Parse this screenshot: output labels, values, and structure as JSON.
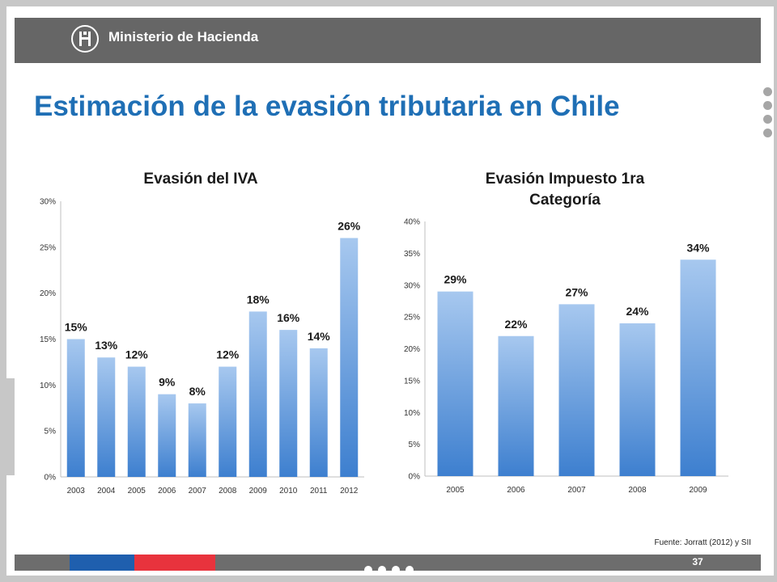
{
  "header": {
    "brand": "Ministerio de Hacienda"
  },
  "title": "Estimación de la evasión tributaria en Chile",
  "footer": {
    "source": "Fuente: Jorratt (2012) y SII",
    "page_number": "37"
  },
  "colors": {
    "title": "#1f6fb5",
    "bar_top": "#a7c8ef",
    "bar_bottom": "#3d7fcf",
    "header_bar": "#666666",
    "footer_blue": "#1f5fae",
    "footer_red": "#e8333d"
  },
  "chart_data": [
    {
      "type": "bar",
      "title": "Evasión del IVA",
      "categories": [
        "2003",
        "2004",
        "2005",
        "2006",
        "2007",
        "2008",
        "2009",
        "2010",
        "2011",
        "2012"
      ],
      "values": [
        15,
        13,
        12,
        9,
        8,
        12,
        18,
        16,
        14,
        26
      ],
      "value_labels": [
        "15%",
        "13%",
        "12%",
        "9%",
        "8%",
        "12%",
        "18%",
        "16%",
        "14%",
        "26%"
      ],
      "yticks": [
        "0%",
        "5%",
        "10%",
        "15%",
        "20%",
        "25%",
        "30%"
      ],
      "ylim": [
        0,
        30
      ],
      "grid": false,
      "legend": "none"
    },
    {
      "type": "bar",
      "title_lines": [
        "Evasión Impuesto 1ra",
        "Categoría"
      ],
      "categories": [
        "2005",
        "2006",
        "2007",
        "2008",
        "2009"
      ],
      "values": [
        29,
        22,
        27,
        24,
        34
      ],
      "value_labels": [
        "29%",
        "22%",
        "27%",
        "24%",
        "34%"
      ],
      "yticks": [
        "0%",
        "5%",
        "10%",
        "15%",
        "20%",
        "25%",
        "30%",
        "35%",
        "40%"
      ],
      "ylim": [
        0,
        40
      ],
      "grid": false,
      "legend": "none"
    }
  ]
}
